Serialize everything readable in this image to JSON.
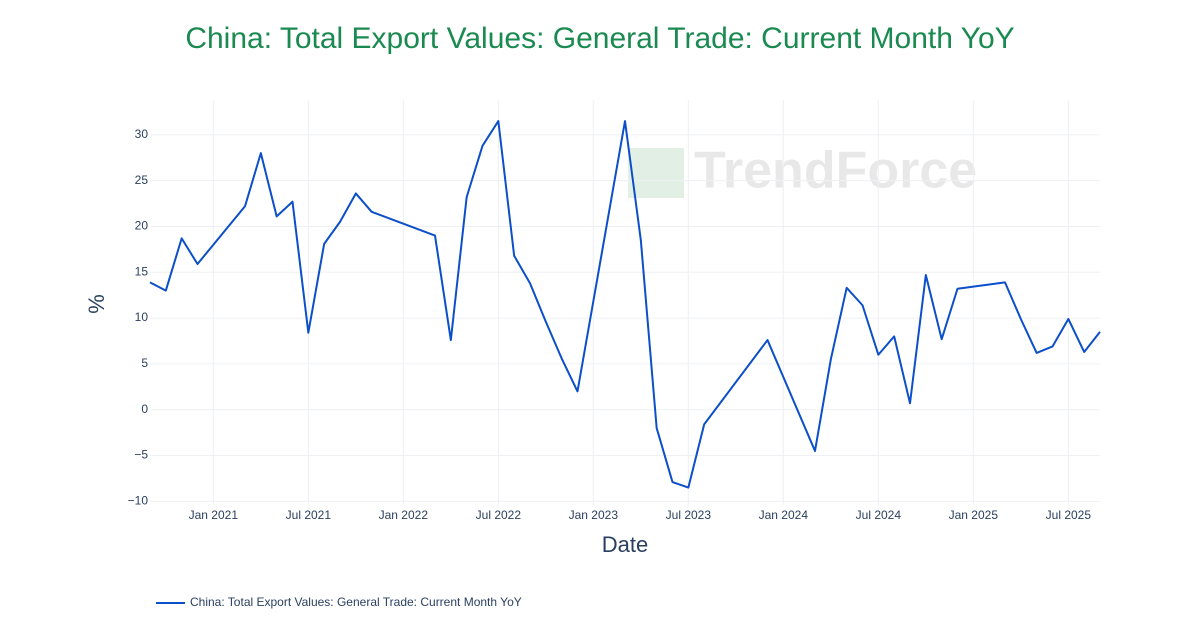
{
  "chart_data": {
    "type": "line",
    "title": "China: Total Export Values: General Trade: Current Month YoY",
    "watermark": "TrendForce",
    "xlabel": "Date",
    "ylabel": "%",
    "x": [
      "2020-09",
      "2020-10",
      "2020-11",
      "2020-12",
      "2021-03",
      "2021-04",
      "2021-05",
      "2021-06",
      "2021-07",
      "2021-08",
      "2021-09",
      "2021-10",
      "2021-11",
      "2022-03",
      "2022-04",
      "2022-05",
      "2022-06",
      "2022-07",
      "2022-08",
      "2022-09",
      "2022-10",
      "2022-11",
      "2022-12",
      "2023-03",
      "2023-04",
      "2023-05",
      "2023-06",
      "2023-07",
      "2023-08",
      "2023-12",
      "2024-03",
      "2024-04",
      "2024-05",
      "2024-06",
      "2024-07",
      "2024-08",
      "2024-09",
      "2024-10",
      "2024-11",
      "2024-12",
      "2025-03",
      "2025-04",
      "2025-05",
      "2025-06",
      "2025-07",
      "2025-08",
      "2025-09"
    ],
    "series": [
      {
        "name": "China: Total Export Values: General Trade: Current Month YoY",
        "color": "#0b4fc9",
        "values": [
          13.9,
          13.0,
          18.7,
          15.9,
          22.2,
          28.0,
          21.1,
          22.7,
          8.4,
          18.1,
          20.5,
          23.6,
          21.6,
          19.0,
          7.6,
          23.2,
          28.8,
          31.5,
          16.8,
          13.8,
          9.6,
          5.6,
          2.0,
          31.5,
          18.5,
          -2.0,
          -7.9,
          -8.5,
          -1.6,
          7.6,
          -4.5,
          5.5,
          13.3,
          11.4,
          6.0,
          8.0,
          0.7,
          14.7,
          7.7,
          13.2,
          13.9,
          9.9,
          6.2,
          6.9,
          9.9,
          6.3,
          8.5
        ]
      }
    ],
    "xlim": [
      "2020-09",
      "2025-09"
    ],
    "xticks": [
      {
        "value": "2021-01",
        "label": "Jan 2021"
      },
      {
        "value": "2021-07",
        "label": "Jul 2021"
      },
      {
        "value": "2022-01",
        "label": "Jan 2022"
      },
      {
        "value": "2022-07",
        "label": "Jul 2022"
      },
      {
        "value": "2023-01",
        "label": "Jan 2023"
      },
      {
        "value": "2023-07",
        "label": "Jul 2023"
      },
      {
        "value": "2024-01",
        "label": "Jan 2024"
      },
      {
        "value": "2024-07",
        "label": "Jul 2024"
      },
      {
        "value": "2025-01",
        "label": "Jan 2025"
      },
      {
        "value": "2025-07",
        "label": "Jul 2025"
      }
    ],
    "ylim": [
      -10.4,
      33.8
    ],
    "yticks": [
      {
        "value": -10,
        "label": "−10"
      },
      {
        "value": -5,
        "label": "−5"
      },
      0,
      5,
      10,
      15,
      20,
      25,
      30
    ],
    "grid": true,
    "legend": "bottom-left"
  }
}
